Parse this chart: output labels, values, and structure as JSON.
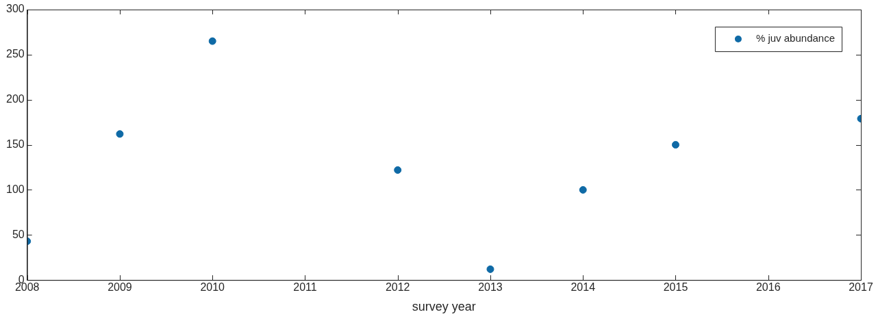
{
  "chart_data": {
    "type": "scatter",
    "xlabel": "survey year",
    "x": [
      2008,
      2009,
      2010,
      2012,
      2013,
      2014,
      2015,
      2017
    ],
    "series": [
      {
        "name": "% juv abundance",
        "color": "#0f6aa6",
        "values": [
          43,
          162,
          265,
          122,
          12,
          100,
          150,
          179
        ]
      }
    ],
    "xlim": [
      2008,
      2017
    ],
    "xticks": [
      2008,
      2009,
      2010,
      2011,
      2012,
      2013,
      2014,
      2015,
      2016,
      2017
    ],
    "ylim": [
      0,
      300
    ],
    "yticks": [
      0,
      50,
      100,
      150,
      200,
      250,
      300
    ],
    "legend": "top right",
    "marker": "circle"
  }
}
